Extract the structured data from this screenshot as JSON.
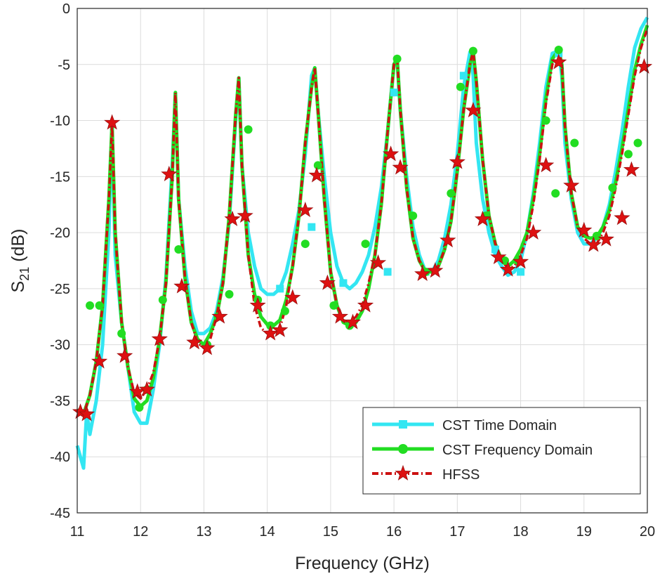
{
  "chart_data": {
    "type": "line",
    "xlabel": "Frequency (GHz)",
    "ylabel": {
      "main": "S",
      "sub": "21",
      "suffix": " (dB)"
    },
    "xlim": [
      11,
      20
    ],
    "ylim": [
      -45,
      0
    ],
    "xticks": [
      "11",
      "12",
      "13",
      "14",
      "15",
      "16",
      "17",
      "18",
      "19",
      "20"
    ],
    "yticks": [
      "0",
      "-5",
      "-10",
      "-15",
      "-20",
      "-25",
      "-30",
      "-35",
      "-40",
      "-45"
    ],
    "grid": true,
    "legend_position": "bottom-right",
    "series": [
      {
        "name": "CST Time Domain",
        "color": "#33e6f2",
        "marker": "square",
        "x": [
          11.0,
          11.1,
          11.15,
          11.2,
          11.3,
          11.4,
          11.5,
          11.55,
          11.6,
          11.7,
          11.8,
          11.9,
          12.0,
          12.1,
          12.2,
          12.3,
          12.4,
          12.5,
          12.55,
          12.6,
          12.7,
          12.8,
          12.9,
          13.0,
          13.1,
          13.2,
          13.3,
          13.4,
          13.5,
          13.55,
          13.6,
          13.7,
          13.8,
          13.9,
          14.0,
          14.1,
          14.2,
          14.3,
          14.4,
          14.5,
          14.6,
          14.7,
          14.75,
          14.8,
          14.9,
          15.0,
          15.1,
          15.2,
          15.3,
          15.4,
          15.5,
          15.6,
          15.7,
          15.8,
          15.9,
          16.0,
          16.05,
          16.1,
          16.2,
          16.3,
          16.4,
          16.5,
          16.6,
          16.7,
          16.8,
          16.9,
          17.0,
          17.1,
          17.2,
          17.25,
          17.3,
          17.4,
          17.5,
          17.6,
          17.7,
          17.8,
          17.9,
          18.0,
          18.1,
          18.2,
          18.3,
          18.4,
          18.5,
          18.6,
          18.65,
          18.7,
          18.8,
          18.9,
          19.0,
          19.1,
          19.2,
          19.3,
          19.4,
          19.5,
          19.6,
          19.7,
          19.8,
          19.9,
          20.0
        ],
        "y": [
          -39,
          -41,
          -36,
          -38,
          -35,
          -30,
          -20,
          -10.5,
          -22,
          -28,
          -32,
          -36,
          -37,
          -37,
          -34,
          -30,
          -24,
          -14,
          -7.5,
          -17,
          -23,
          -27,
          -29,
          -29,
          -28.5,
          -27,
          -24,
          -19,
          -10,
          -6.2,
          -14,
          -20,
          -23,
          -25,
          -25.5,
          -25.5,
          -25,
          -23.5,
          -21,
          -18,
          -13,
          -6,
          -5.3,
          -9,
          -15,
          -20,
          -23,
          -24.5,
          -25,
          -24.5,
          -23.5,
          -22,
          -19.5,
          -16,
          -11,
          -5,
          -4.6,
          -9,
          -15,
          -19.5,
          -22,
          -23.5,
          -23.5,
          -22.5,
          -20.5,
          -17.5,
          -13,
          -7,
          -3.9,
          -6,
          -12,
          -17,
          -20,
          -22,
          -23,
          -23.8,
          -23.5,
          -22.5,
          -20,
          -16.5,
          -12,
          -7,
          -4,
          -3.8,
          -6,
          -12,
          -17,
          -20,
          -21,
          -21,
          -20.5,
          -19.5,
          -17.5,
          -14.5,
          -11,
          -7,
          -3.5,
          -1.8,
          -0.8
        ]
      },
      {
        "name": "CST Frequency Domain",
        "color": "#22dd22",
        "marker": "circle",
        "x": [
          11.0,
          11.1,
          11.2,
          11.3,
          11.4,
          11.5,
          11.55,
          11.6,
          11.7,
          11.8,
          11.9,
          12.0,
          12.1,
          12.2,
          12.3,
          12.4,
          12.5,
          12.55,
          12.6,
          12.7,
          12.8,
          12.9,
          13.0,
          13.1,
          13.2,
          13.3,
          13.4,
          13.5,
          13.55,
          13.6,
          13.7,
          13.8,
          13.9,
          14.0,
          14.1,
          14.2,
          14.3,
          14.4,
          14.5,
          14.6,
          14.7,
          14.75,
          14.8,
          14.9,
          15.0,
          15.1,
          15.2,
          15.3,
          15.4,
          15.5,
          15.6,
          15.7,
          15.8,
          15.9,
          16.0,
          16.05,
          16.1,
          16.2,
          16.3,
          16.4,
          16.5,
          16.6,
          16.7,
          16.8,
          16.9,
          17.0,
          17.1,
          17.2,
          17.25,
          17.3,
          17.4,
          17.5,
          17.6,
          17.7,
          17.8,
          17.9,
          18.0,
          18.1,
          18.2,
          18.3,
          18.4,
          18.5,
          18.6,
          18.65,
          18.7,
          18.8,
          18.9,
          19.0,
          19.1,
          19.2,
          19.3,
          19.4,
          19.5,
          19.6,
          19.7,
          19.8,
          19.9,
          20.0
        ],
        "y": [
          -35.8,
          -36.2,
          -34.5,
          -31.5,
          -26.5,
          -17,
          -10.3,
          -20,
          -28,
          -32,
          -34.8,
          -35.5,
          -35,
          -33,
          -29.5,
          -24.5,
          -15,
          -7.5,
          -17,
          -24,
          -28,
          -29.5,
          -30,
          -29,
          -27.5,
          -24.5,
          -18.5,
          -9.5,
          -6.2,
          -14,
          -22,
          -25.5,
          -27.5,
          -28.2,
          -28.3,
          -27.8,
          -26,
          -23,
          -18.5,
          -12,
          -7,
          -5.3,
          -9,
          -17,
          -23.5,
          -26.5,
          -28,
          -28.3,
          -28,
          -27,
          -25,
          -22,
          -17.5,
          -11,
          -5,
          -4.4,
          -9,
          -16,
          -20.5,
          -22.5,
          -23.5,
          -23.5,
          -23,
          -21.5,
          -19,
          -14.5,
          -9,
          -5,
          -3.8,
          -6.5,
          -13.5,
          -18.5,
          -21,
          -22.5,
          -23,
          -22.5,
          -21.5,
          -20,
          -17,
          -13,
          -8,
          -4.5,
          -3.7,
          -5,
          -10.5,
          -16.5,
          -19.5,
          -20.3,
          -20.5,
          -20.4,
          -19.5,
          -18,
          -15.5,
          -12.5,
          -9,
          -5.5,
          -3.2,
          -1.5
        ]
      },
      {
        "name": "HFSS",
        "color": "#cc1111",
        "marker": "star",
        "x": [
          11.0,
          11.1,
          11.2,
          11.3,
          11.4,
          11.5,
          11.55,
          11.6,
          11.7,
          11.8,
          11.9,
          12.0,
          12.1,
          12.2,
          12.3,
          12.4,
          12.5,
          12.55,
          12.6,
          12.7,
          12.8,
          12.9,
          13.0,
          13.1,
          13.2,
          13.3,
          13.4,
          13.5,
          13.55,
          13.6,
          13.7,
          13.8,
          13.9,
          14.0,
          14.1,
          14.2,
          14.3,
          14.4,
          14.5,
          14.6,
          14.7,
          14.75,
          14.8,
          14.9,
          15.0,
          15.1,
          15.2,
          15.3,
          15.4,
          15.5,
          15.6,
          15.7,
          15.8,
          15.9,
          16.0,
          16.05,
          16.1,
          16.2,
          16.3,
          16.4,
          16.5,
          16.6,
          16.7,
          16.8,
          16.9,
          17.0,
          17.1,
          17.2,
          17.25,
          17.3,
          17.4,
          17.5,
          17.6,
          17.7,
          17.8,
          17.9,
          18.0,
          18.1,
          18.2,
          18.3,
          18.4,
          18.5,
          18.6,
          18.65,
          18.7,
          18.8,
          18.9,
          19.0,
          19.1,
          19.2,
          19.3,
          19.4,
          19.5,
          19.6,
          19.7,
          19.8,
          19.9,
          20.0
        ],
        "y": [
          -35.8,
          -36.2,
          -34.5,
          -31.5,
          -26.5,
          -17,
          -10.3,
          -20,
          -28,
          -32,
          -34.3,
          -34.8,
          -34,
          -32.5,
          -29.5,
          -24.5,
          -15,
          -7.5,
          -17,
          -24,
          -28,
          -29.8,
          -30.3,
          -29.5,
          -27.5,
          -24.5,
          -18.5,
          -9.5,
          -6.2,
          -14,
          -22,
          -26.5,
          -28.5,
          -29,
          -29,
          -28.5,
          -26.5,
          -23,
          -18.5,
          -12,
          -7,
          -5.3,
          -9,
          -17,
          -23.5,
          -26.5,
          -27.8,
          -28,
          -27.5,
          -26.5,
          -24.5,
          -22,
          -17.5,
          -11,
          -5,
          -4.4,
          -9,
          -16,
          -20.5,
          -22.5,
          -23.5,
          -23.5,
          -23,
          -21.5,
          -19,
          -14.5,
          -9,
          -5,
          -3.8,
          -6.5,
          -13.5,
          -18.5,
          -21,
          -22.5,
          -23.2,
          -23,
          -22,
          -20.5,
          -17.5,
          -13.5,
          -8.5,
          -5,
          -3.7,
          -5,
          -10.5,
          -16.5,
          -19.5,
          -20.5,
          -21,
          -21,
          -20,
          -18.5,
          -16,
          -13,
          -9.5,
          -6,
          -3.5,
          -1.8
        ]
      }
    ],
    "markers": {
      "CST Time Domain": [
        [
          14.2,
          -25
        ],
        [
          14.7,
          -19.5
        ],
        [
          15.2,
          -24.5
        ],
        [
          15.9,
          -23.5
        ],
        [
          16.0,
          -7.5
        ],
        [
          16.5,
          -23.5
        ],
        [
          17.1,
          -6
        ],
        [
          17.6,
          -21.5
        ],
        [
          18.0,
          -23.5
        ],
        [
          18.6,
          -4
        ]
      ],
      "CST Frequency Domain": [
        [
          11.2,
          -26.5
        ],
        [
          11.35,
          -26.5
        ],
        [
          11.7,
          -29
        ],
        [
          11.98,
          -35.6
        ],
        [
          12.1,
          -34
        ],
        [
          12.35,
          -26
        ],
        [
          12.6,
          -21.5
        ],
        [
          13.05,
          -30
        ],
        [
          13.22,
          -27.5
        ],
        [
          13.4,
          -25.5
        ],
        [
          13.7,
          -10.8
        ],
        [
          13.85,
          -26
        ],
        [
          14.05,
          -28.3
        ],
        [
          14.28,
          -27
        ],
        [
          14.6,
          -21
        ],
        [
          14.8,
          -14
        ],
        [
          15.05,
          -26.5
        ],
        [
          15.3,
          -28.3
        ],
        [
          15.55,
          -21
        ],
        [
          16.05,
          -4.5
        ],
        [
          16.3,
          -18.5
        ],
        [
          16.5,
          -23.5
        ],
        [
          16.9,
          -16.5
        ],
        [
          17.05,
          -7
        ],
        [
          17.25,
          -3.8
        ],
        [
          17.45,
          -18.5
        ],
        [
          17.75,
          -22.5
        ],
        [
          17.95,
          -22.5
        ],
        [
          18.4,
          -10
        ],
        [
          18.55,
          -16.5
        ],
        [
          18.6,
          -3.7
        ],
        [
          18.85,
          -12
        ],
        [
          19.2,
          -20.3
        ],
        [
          19.45,
          -16
        ],
        [
          19.7,
          -13
        ],
        [
          19.85,
          -12
        ]
      ],
      "HFSS": [
        [
          11.05,
          -36
        ],
        [
          11.15,
          -36.2
        ],
        [
          11.35,
          -31.5
        ],
        [
          11.55,
          -10.2
        ],
        [
          11.75,
          -31
        ],
        [
          11.95,
          -34.2
        ],
        [
          12.1,
          -34
        ],
        [
          12.3,
          -29.5
        ],
        [
          12.45,
          -14.8
        ],
        [
          12.65,
          -24.8
        ],
        [
          12.85,
          -29.8
        ],
        [
          13.05,
          -30.3
        ],
        [
          13.25,
          -27.5
        ],
        [
          13.45,
          -18.8
        ],
        [
          13.65,
          -18.5
        ],
        [
          13.85,
          -26.5
        ],
        [
          14.05,
          -29
        ],
        [
          14.2,
          -28.7
        ],
        [
          14.4,
          -25.8
        ],
        [
          14.6,
          -18
        ],
        [
          14.78,
          -14.9
        ],
        [
          14.95,
          -24.5
        ],
        [
          15.15,
          -27.5
        ],
        [
          15.35,
          -28
        ],
        [
          15.55,
          -26.5
        ],
        [
          15.75,
          -22.7
        ],
        [
          15.95,
          -13
        ],
        [
          16.1,
          -14.2
        ],
        [
          16.45,
          -23.7
        ],
        [
          16.65,
          -23.4
        ],
        [
          16.85,
          -20.7
        ],
        [
          17.0,
          -13.7
        ],
        [
          17.25,
          -9.1
        ],
        [
          17.4,
          -18.8
        ],
        [
          17.65,
          -22.2
        ],
        [
          17.8,
          -23.3
        ],
        [
          18.0,
          -22.6
        ],
        [
          18.2,
          -20
        ],
        [
          18.4,
          -14
        ],
        [
          18.6,
          -4.8
        ],
        [
          18.8,
          -15.8
        ],
        [
          19.0,
          -19.8
        ],
        [
          19.15,
          -21.1
        ],
        [
          19.35,
          -20.6
        ],
        [
          19.6,
          -18.7
        ],
        [
          19.75,
          -14.4
        ],
        [
          19.95,
          -5.2
        ]
      ]
    }
  }
}
